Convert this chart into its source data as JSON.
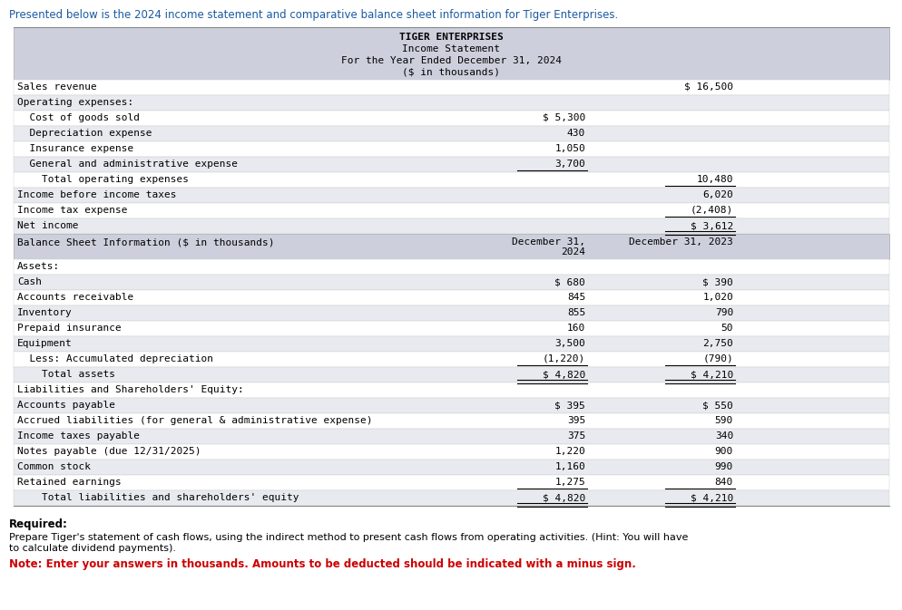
{
  "intro_text": "Presented below is the 2024 income statement and comparative balance sheet information for Tiger Enterprises.",
  "table_header_lines": [
    "TIGER ENTERPRISES",
    "Income Statement",
    "For the Year Ended December 31, 2024",
    "($ in thousands)"
  ],
  "income_rows": [
    {
      "label": "Sales revenue",
      "col1": "",
      "col2": "$ 16,500",
      "indent": 0,
      "ul_c1": false,
      "ul_c2": false,
      "dbl_c1": false,
      "dbl_c2": false
    },
    {
      "label": "Operating expenses:",
      "col1": "",
      "col2": "",
      "indent": 0,
      "ul_c1": false,
      "ul_c2": false,
      "dbl_c1": false,
      "dbl_c2": false
    },
    {
      "label": "  Cost of goods sold",
      "col1": "$ 5,300",
      "col2": "",
      "indent": 0,
      "ul_c1": false,
      "ul_c2": false,
      "dbl_c1": false,
      "dbl_c2": false
    },
    {
      "label": "  Depreciation expense",
      "col1": "430",
      "col2": "",
      "indent": 0,
      "ul_c1": false,
      "ul_c2": false,
      "dbl_c1": false,
      "dbl_c2": false
    },
    {
      "label": "  Insurance expense",
      "col1": "1,050",
      "col2": "",
      "indent": 0,
      "ul_c1": false,
      "ul_c2": false,
      "dbl_c1": false,
      "dbl_c2": false
    },
    {
      "label": "  General and administrative expense",
      "col1": "3,700",
      "col2": "",
      "indent": 0,
      "ul_c1": true,
      "ul_c2": false,
      "dbl_c1": false,
      "dbl_c2": false
    },
    {
      "label": "    Total operating expenses",
      "col1": "",
      "col2": "10,480",
      "indent": 0,
      "ul_c1": false,
      "ul_c2": true,
      "dbl_c1": false,
      "dbl_c2": false
    },
    {
      "label": "Income before income taxes",
      "col1": "",
      "col2": "6,020",
      "indent": 0,
      "ul_c1": false,
      "ul_c2": false,
      "dbl_c1": false,
      "dbl_c2": false
    },
    {
      "label": "Income tax expense",
      "col1": "",
      "col2": "(2,408)",
      "indent": 0,
      "ul_c1": false,
      "ul_c2": true,
      "dbl_c1": false,
      "dbl_c2": false
    },
    {
      "label": "Net income",
      "col1": "",
      "col2": "$ 3,612",
      "indent": 0,
      "ul_c1": false,
      "ul_c2": false,
      "dbl_c1": false,
      "dbl_c2": true
    }
  ],
  "balance_header": "Balance Sheet Information ($ in thousands)",
  "balance_rows": [
    {
      "label": "Assets:",
      "col1": "",
      "col2": "",
      "ul_c1": false,
      "ul_c2": false,
      "dbl_c1": false,
      "dbl_c2": false
    },
    {
      "label": "Cash",
      "col1": "$ 680",
      "col2": "$ 390",
      "ul_c1": false,
      "ul_c2": false,
      "dbl_c1": false,
      "dbl_c2": false
    },
    {
      "label": "Accounts receivable",
      "col1": "845",
      "col2": "1,020",
      "ul_c1": false,
      "ul_c2": false,
      "dbl_c1": false,
      "dbl_c2": false
    },
    {
      "label": "Inventory",
      "col1": "855",
      "col2": "790",
      "ul_c1": false,
      "ul_c2": false,
      "dbl_c1": false,
      "dbl_c2": false
    },
    {
      "label": "Prepaid insurance",
      "col1": "160",
      "col2": "50",
      "ul_c1": false,
      "ul_c2": false,
      "dbl_c1": false,
      "dbl_c2": false
    },
    {
      "label": "Equipment",
      "col1": "3,500",
      "col2": "2,750",
      "ul_c1": false,
      "ul_c2": false,
      "dbl_c1": false,
      "dbl_c2": false
    },
    {
      "label": "  Less: Accumulated depreciation",
      "col1": "(1,220)",
      "col2": "(790)",
      "ul_c1": true,
      "ul_c2": true,
      "dbl_c1": false,
      "dbl_c2": false
    },
    {
      "label": "    Total assets",
      "col1": "$ 4,820",
      "col2": "$ 4,210",
      "ul_c1": false,
      "ul_c2": false,
      "dbl_c1": true,
      "dbl_c2": true
    },
    {
      "label": "Liabilities and Shareholders' Equity:",
      "col1": "",
      "col2": "",
      "ul_c1": false,
      "ul_c2": false,
      "dbl_c1": false,
      "dbl_c2": false
    },
    {
      "label": "Accounts payable",
      "col1": "$ 395",
      "col2": "$ 550",
      "ul_c1": false,
      "ul_c2": false,
      "dbl_c1": false,
      "dbl_c2": false
    },
    {
      "label": "Accrued liabilities (for general & administrative expense)",
      "col1": "395",
      "col2": "590",
      "ul_c1": false,
      "ul_c2": false,
      "dbl_c1": false,
      "dbl_c2": false
    },
    {
      "label": "Income taxes payable",
      "col1": "375",
      "col2": "340",
      "ul_c1": false,
      "ul_c2": false,
      "dbl_c1": false,
      "dbl_c2": false
    },
    {
      "label": "Notes payable (due 12/31/2025)",
      "col1": "1,220",
      "col2": "900",
      "ul_c1": false,
      "ul_c2": false,
      "dbl_c1": false,
      "dbl_c2": false
    },
    {
      "label": "Common stock",
      "col1": "1,160",
      "col2": "990",
      "ul_c1": false,
      "ul_c2": false,
      "dbl_c1": false,
      "dbl_c2": false
    },
    {
      "label": "Retained earnings",
      "col1": "1,275",
      "col2": "840",
      "ul_c1": true,
      "ul_c2": true,
      "dbl_c1": false,
      "dbl_c2": false
    },
    {
      "label": "    Total liabilities and shareholders' equity",
      "col1": "$ 4,820",
      "col2": "$ 4,210",
      "ul_c1": false,
      "ul_c2": false,
      "dbl_c1": true,
      "dbl_c2": true
    }
  ],
  "required_text": "Required:",
  "required_body": "Prepare Tiger's statement of cash flows, using the indirect method to present cash flows from operating activities. (Hint: You will have\nto calculate dividend payments).",
  "note_text": "Note: Enter your answers in thousands. Amounts to be deducted should be indicated with a minus sign.",
  "bg_header": "#cdd0dc",
  "bg_light": "#ffffff",
  "bg_dark": "#e8eaef",
  "col_intro": "#1a5aa0",
  "col_note": "#cc0000",
  "fs": 8.0
}
